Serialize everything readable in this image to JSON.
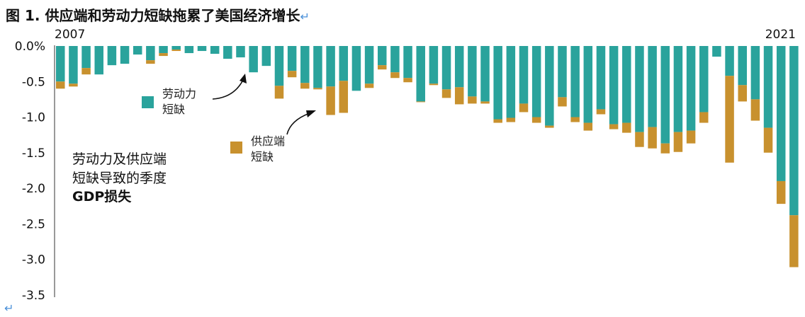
{
  "title": "图 1. 供应端和劳动力短缺拖累了美国经济增长",
  "chart_data": {
    "type": "bar",
    "stacked": true,
    "xlabel": "",
    "ylabel": "",
    "ylim": [
      -3.5,
      0.0
    ],
    "y_ticks": [
      "0.0%",
      "-0.5",
      "-1.0",
      "-1.5",
      "-2.0",
      "-2.5",
      "-3.0",
      "-3.5"
    ],
    "x_start_label": "2007",
    "x_end_label": "2021",
    "grid": false,
    "legend_placement": "inline annotations",
    "series": [
      {
        "name": "劳动力 短缺",
        "color": "#2aa39c",
        "values": [
          -0.5,
          -0.53,
          -0.31,
          -0.4,
          -0.27,
          -0.25,
          -0.12,
          -0.2,
          -0.1,
          -0.05,
          -0.1,
          -0.07,
          -0.11,
          -0.18,
          -0.16,
          -0.37,
          -0.28,
          -0.56,
          -0.35,
          -0.52,
          -0.59,
          -0.57,
          -0.49,
          -0.63,
          -0.53,
          -0.27,
          -0.37,
          -0.45,
          -0.78,
          -0.53,
          -0.61,
          -0.58,
          -0.71,
          -0.78,
          -1.03,
          -1.01,
          -0.81,
          -1.0,
          -1.12,
          -0.72,
          -1.0,
          -1.08,
          -0.89,
          -1.1,
          -1.08,
          -1.21,
          -1.14,
          -1.37,
          -1.21,
          -1.19,
          -0.93,
          -0.15,
          -0.42,
          -0.55,
          -0.75,
          -1.15,
          -1.9,
          -2.38
        ],
        "labels": [
          "劳动力",
          "短缺"
        ]
      },
      {
        "name": "供应端 短缺",
        "color": "#c8912e",
        "values": [
          -0.1,
          -0.04,
          -0.09,
          0,
          0,
          0,
          0,
          -0.05,
          -0.04,
          -0.02,
          0,
          0,
          0,
          0,
          0,
          0,
          0,
          -0.18,
          -0.09,
          -0.08,
          -0.02,
          -0.4,
          -0.45,
          0,
          -0.06,
          -0.06,
          -0.08,
          -0.06,
          -0.01,
          -0.02,
          -0.12,
          -0.24,
          -0.1,
          -0.03,
          -0.05,
          -0.06,
          -0.12,
          -0.08,
          -0.03,
          -0.13,
          -0.07,
          -0.11,
          -0.07,
          -0.07,
          -0.14,
          -0.21,
          -0.3,
          -0.14,
          -0.28,
          -0.18,
          -0.15,
          0,
          -1.22,
          -0.23,
          -0.3,
          -0.35,
          -0.32,
          -0.73
        ],
        "labels": [
          "供应端",
          "短缺"
        ]
      }
    ],
    "note_lines": [
      "劳动力及供应端",
      "短缺导致的季度",
      "GDP损失"
    ]
  }
}
